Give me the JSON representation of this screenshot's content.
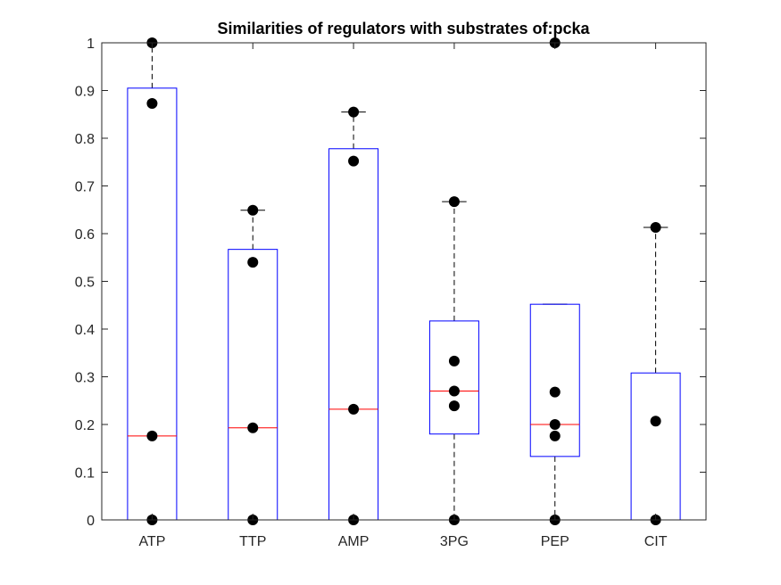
{
  "chart_data": {
    "type": "box",
    "title": "Similarities of regulators with substrates of:pcka",
    "xlabel": "",
    "ylabel": "",
    "categories": [
      "ATP",
      "TTP",
      "AMP",
      "3PG",
      "PEP",
      "CIT"
    ],
    "ylim": [
      0,
      1
    ],
    "yticks": [
      0,
      0.1,
      0.2,
      0.3,
      0.4,
      0.5,
      0.6,
      0.7,
      0.8,
      0.9,
      1
    ],
    "ytick_labels": [
      "0",
      "0.1",
      "0.2",
      "0.3",
      "0.4",
      "0.5",
      "0.6",
      "0.7",
      "0.8",
      "0.9",
      "1"
    ],
    "grid": false,
    "boxes": [
      {
        "category": "ATP",
        "min": 0,
        "q1": 0,
        "median": 0.176,
        "q3": 0.905,
        "max": 1,
        "points": [
          1,
          0.873,
          0.176,
          0
        ]
      },
      {
        "category": "TTP",
        "min": 0,
        "q1": 0,
        "median": 0.193,
        "q3": 0.567,
        "max": 0.649,
        "points": [
          0.649,
          0.54,
          0.193,
          0
        ]
      },
      {
        "category": "AMP",
        "min": 0,
        "q1": 0,
        "median": 0.232,
        "q3": 0.778,
        "max": 0.855,
        "points": [
          0.855,
          0.752,
          0.232,
          0
        ]
      },
      {
        "category": "3PG",
        "min": 0,
        "q1": 0.18,
        "median": 0.27,
        "q3": 0.417,
        "max": 0.667,
        "points": [
          0.667,
          0.333,
          0.27,
          0.239,
          0
        ]
      },
      {
        "category": "PEP",
        "min": 0,
        "q1": 0.133,
        "median": 0.2,
        "q3": 0.452,
        "max": 0.452,
        "outliers": [
          1
        ],
        "points": [
          1,
          0.268,
          0.2,
          0.176,
          0
        ]
      },
      {
        "category": "CIT",
        "min": 0,
        "q1": 0,
        "median": 0,
        "q3": 0.308,
        "max": 0.613,
        "points": [
          0.613,
          0.207,
          0
        ]
      }
    ],
    "colors": {
      "box": "#0000ff",
      "median": "#ff0000",
      "whisker": "#000000",
      "points": "#000000",
      "axes": "#262626"
    }
  }
}
